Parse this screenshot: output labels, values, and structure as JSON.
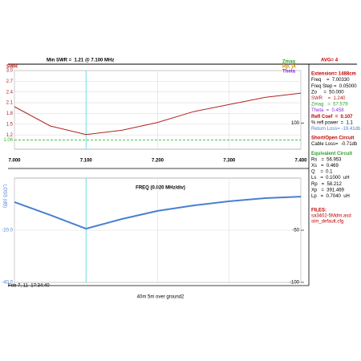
{
  "header": {
    "title": "Min SWR =  1.21 @ 7.100 MHz",
    "right_labels": [
      {
        "text": "Zmag",
        "color": "#2e9e2e"
      },
      {
        "text": "Rp, jX",
        "color": "#d08a00"
      },
      {
        "text": "Theta",
        "color": "#8a2be2"
      }
    ],
    "avg": "AVG= 4"
  },
  "chart_data": [
    {
      "type": "line",
      "x": [
        7.0,
        7.05,
        7.1,
        7.15,
        7.2,
        7.25,
        7.3,
        7.35,
        7.4
      ],
      "series": [
        {
          "name": "SWR",
          "color": "#b22222",
          "values": [
            1.99,
            1.45,
            1.21,
            1.33,
            1.55,
            1.85,
            2.05,
            2.25,
            2.37
          ]
        }
      ],
      "xlim": [
        7.0,
        7.4
      ],
      "xticks": [
        {
          "value": 7.0,
          "label": "7.000"
        },
        {
          "value": 7.1,
          "label": "7.100"
        },
        {
          "value": 7.2,
          "label": "7.200"
        },
        {
          "value": 7.3,
          "label": "7.300"
        },
        {
          "value": 7.4,
          "label": "7.400"
        }
      ],
      "xlabel": "FREQ (0.020 MHz/div)",
      "ylim": [
        0.8,
        3.0
      ],
      "yticks": [
        {
          "value": 3.0,
          "label": "3.0"
        },
        2.7,
        2.4,
        2.1,
        1.8,
        1.5,
        1.2
      ],
      "y2lim": [
        0,
        300
      ],
      "y2ticks": [
        100
      ],
      "reference_line": 1.06,
      "marker_x": 7.1,
      "grid": true
    },
    {
      "type": "line",
      "x": [
        7.0,
        7.05,
        7.1,
        7.15,
        7.2,
        7.25,
        7.3,
        7.35,
        7.4
      ],
      "series": [
        {
          "name": "LOSS (dB)",
          "color": "#4a7fd0",
          "values": [
            -9.2,
            -14.2,
            -19.4,
            -15.7,
            -12.6,
            -10.5,
            -8.9,
            -7.7,
            -7.1
          ]
        }
      ],
      "xlim": [
        7.0,
        7.4
      ],
      "ylim": [
        -40,
        0
      ],
      "yticks": [
        {
          "value": -20,
          "label": "-20.0"
        },
        {
          "value": -40,
          "label": "-40.0"
        }
      ],
      "y2lim": [
        -100,
        0
      ],
      "y2ticks": [
        -50,
        -100
      ],
      "marker_x": 7.1,
      "grid": true
    }
  ],
  "panel": [
    {
      "text": "Extension= 1488cm",
      "color": "#c00000"
    },
    {
      "text": "Freq    =  7.00330",
      "color": "#000"
    },
    {
      "text": "Freq Step =  0.05000",
      "color": "#000"
    },
    {
      "text": "Zo     =  50.000",
      "color": "#000"
    },
    {
      "text": "SWR    =  1.240",
      "color": "#b22222"
    },
    {
      "text": "Zmag   =  57.579",
      "color": "#2e9e2e"
    },
    {
      "text": "Theta  =  0.458",
      "color": "#8a2be2"
    },
    {
      "text": "Refl Coef  =  0.107",
      "color": "#c00000"
    },
    {
      "text": "% refl power  =  1.1",
      "color": "#000"
    },
    {
      "text": "Return Loss= -19.41db",
      "color": "#4a7fd0"
    },
    {
      "text": "Short/Open Circuit",
      "color": "#c00000"
    },
    {
      "text": "Cable Loss=  -0.71db",
      "color": "#000"
    },
    {
      "text": "Equivalent Circuit",
      "color": "#2e9e2e"
    },
    {
      "text": "Rs   =  56.953",
      "color": "#000"
    },
    {
      "text": "Xs   =  0.469",
      "color": "#000"
    },
    {
      "text": "Q    =  0.1",
      "color": "#000"
    },
    {
      "text": "Ls   =  0.1000  uH",
      "color": "#000"
    },
    {
      "text": "Rp   =  58.212",
      "color": "#000"
    },
    {
      "text": "Xp   =  391.469",
      "color": "#000"
    },
    {
      "text": "Lp   =  0.7040  uH",
      "color": "#000"
    }
  ],
  "files": {
    "title": "FILES:",
    "names": [
      "sa3402-5Mdm.asd",
      "sim_default.cfg"
    ]
  },
  "footer": {
    "timestamp": "Feb 7, 11  17:34:40",
    "caption": "40m 5m over ground2"
  }
}
